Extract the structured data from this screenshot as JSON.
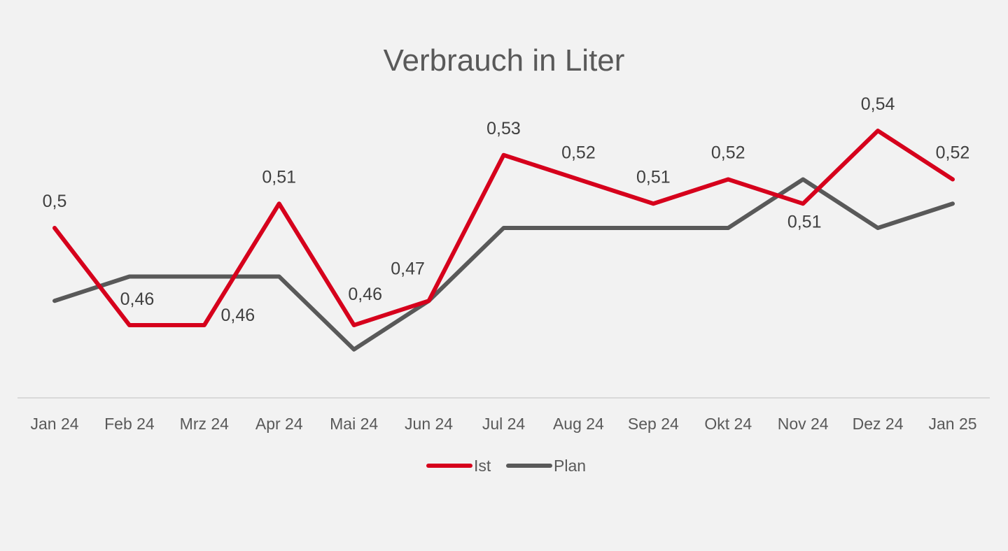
{
  "chart_data": {
    "type": "line",
    "title": "Verbrauch in Liter",
    "xlabel": "",
    "ylabel": "",
    "categories": [
      "Jan 24",
      "Feb 24",
      "Mrz 24",
      "Apr 24",
      "Mai 24",
      "Jun 24",
      "Jul 24",
      "Aug 24",
      "Sep 24",
      "Okt 24",
      "Nov 24",
      "Dez 24",
      "Jan 25"
    ],
    "ylim": [
      0.42,
      0.56
    ],
    "y_axis_visible": false,
    "grid": false,
    "legend_position": "bottom",
    "series": [
      {
        "name": "Ist",
        "color": "#d6001c",
        "values": [
          0.5,
          0.46,
          0.46,
          0.51,
          0.46,
          0.47,
          0.53,
          0.52,
          0.51,
          0.52,
          0.51,
          0.54,
          0.52
        ],
        "labels": [
          "0,5",
          "0,46",
          "0,46",
          "0,51",
          "0,46",
          "0,47",
          "0,53",
          "0,52",
          "0,51",
          "0,52",
          "0,51",
          "0,54",
          "0,52"
        ],
        "label_positions": [
          "above",
          "above",
          "below",
          "above",
          "above",
          "above",
          "above",
          "above",
          "above",
          "above",
          "below",
          "above",
          "above"
        ]
      },
      {
        "name": "Plan",
        "color": "#595959",
        "values": [
          0.47,
          0.48,
          0.48,
          0.48,
          0.45,
          0.47,
          0.5,
          0.5,
          0.5,
          0.5,
          0.52,
          0.5,
          0.51
        ]
      }
    ]
  }
}
